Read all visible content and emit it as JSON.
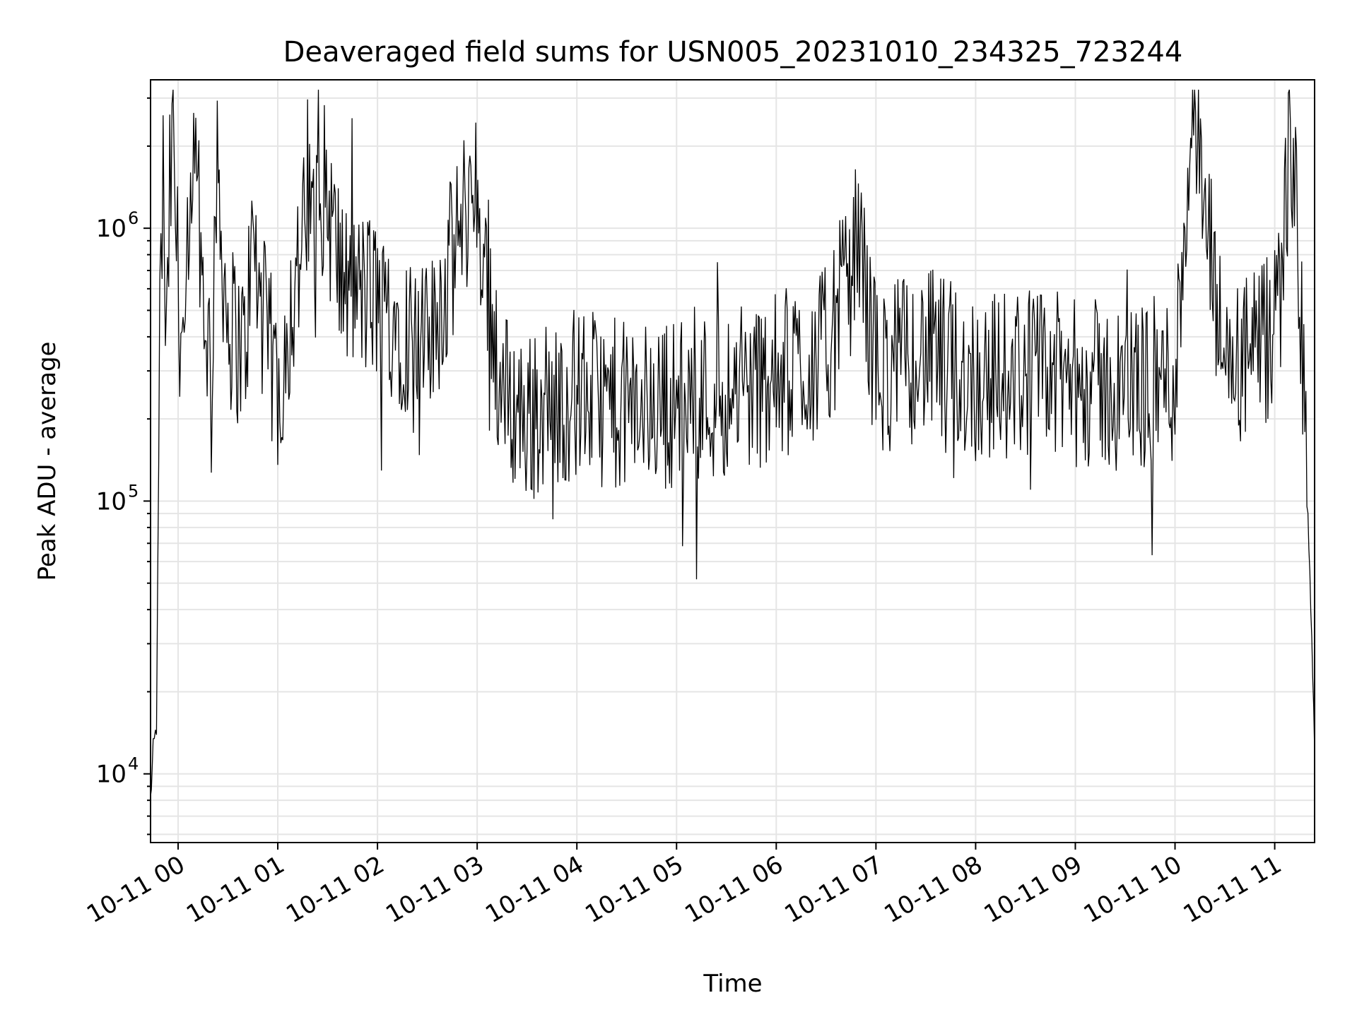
{
  "chart_data": {
    "type": "line",
    "title": "Deaveraged field sums for USN005_20231010_234325_723244",
    "xlabel": "Time",
    "ylabel": "Peak ADU - average",
    "y_scale": "log",
    "ylim": [
      5600,
      3500000
    ],
    "xlim": [
      "2023-10-10 23:43:25",
      "2023-10-11 11:24:00"
    ],
    "grid": true,
    "line_color": "#000000",
    "grid_color": "#e5e5e5",
    "x_ticks": [
      {
        "t": "2023-10-11 00:00",
        "label": "10-11 00"
      },
      {
        "t": "2023-10-11 01:00",
        "label": "10-11 01"
      },
      {
        "t": "2023-10-11 02:00",
        "label": "10-11 02"
      },
      {
        "t": "2023-10-11 03:00",
        "label": "10-11 03"
      },
      {
        "t": "2023-10-11 04:00",
        "label": "10-11 04"
      },
      {
        "t": "2023-10-11 05:00",
        "label": "10-11 05"
      },
      {
        "t": "2023-10-11 06:00",
        "label": "10-11 06"
      },
      {
        "t": "2023-10-11 07:00",
        "label": "10-11 07"
      },
      {
        "t": "2023-10-11 08:00",
        "label": "10-11 08"
      },
      {
        "t": "2023-10-11 09:00",
        "label": "10-11 09"
      },
      {
        "t": "2023-10-11 10:00",
        "label": "10-11 10"
      },
      {
        "t": "2023-10-11 11:00",
        "label": "10-11 11"
      }
    ],
    "y_ticks": [
      {
        "value": 10000,
        "base": "10",
        "exp": "4"
      },
      {
        "value": 100000,
        "base": "10",
        "exp": "5"
      },
      {
        "value": 1000000,
        "base": "10",
        "exp": "6"
      }
    ],
    "series": [
      {
        "values_summary": "dense noisy time series",
        "x": [
          "2023-10-10 23:43:25",
          "2023-10-10 23:45:00",
          "2023-10-10 23:47:00",
          "2023-10-10 23:49:00",
          "2023-10-10 23:51:00",
          "2023-10-10 23:53:00",
          "2023-10-10 23:55:00",
          "2023-10-10 23:57:00",
          "2023-10-10 23:59:00",
          "2023-10-11 00:01:00",
          "2023-10-11 00:03:00",
          "2023-10-11 00:05:00",
          "2023-10-11 00:10:00",
          "2023-10-11 00:15:00",
          "2023-10-11 00:20:00",
          "2023-10-11 00:23:00",
          "2023-10-11 00:30:00",
          "2023-10-11 00:40:00",
          "2023-10-11 00:45:00",
          "2023-10-11 00:50:00",
          "2023-10-11 01:00:00",
          "2023-10-11 01:15:00",
          "2023-10-11 01:28:00",
          "2023-10-11 01:40:00",
          "2023-10-11 02:00:00",
          "2023-10-11 02:30:00",
          "2023-10-11 02:58:00",
          "2023-10-11 03:15:00",
          "2023-10-11 03:30:00",
          "2023-10-11 04:00:00",
          "2023-10-11 04:30:00",
          "2023-10-11 05:00:00",
          "2023-10-11 05:30:00",
          "2023-10-11 06:00:00",
          "2023-10-11 06:30:00",
          "2023-10-11 06:50:00",
          "2023-10-11 07:00:00",
          "2023-10-11 07:30:00",
          "2023-10-11 08:00:00",
          "2023-10-11 08:30:00",
          "2023-10-11 09:00:00",
          "2023-10-11 09:30:00",
          "2023-10-11 10:00:00",
          "2023-10-11 10:10:00",
          "2023-10-11 10:30:00",
          "2023-10-11 10:50:00",
          "2023-10-11 11:00:00",
          "2023-10-11 11:10:00",
          "2023-10-11 11:15:00",
          "2023-10-11 11:20:00",
          "2023-10-11 11:24:00"
        ],
        "y": [
          8000,
          12000,
          15000,
          400000,
          1500000,
          300000,
          1300000,
          2100000,
          900000,
          500000,
          400000,
          350000,
          1700000,
          600000,
          300000,
          1600000,
          450000,
          350000,
          900000,
          500000,
          250000,
          900000,
          1400000,
          600000,
          550000,
          350000,
          1500000,
          250000,
          200000,
          250000,
          220000,
          230000,
          250000,
          280000,
          350000,
          900000,
          300000,
          350000,
          280000,
          300000,
          270000,
          260000,
          280000,
          2600000,
          300000,
          350000,
          400000,
          2300000,
          600000,
          100000,
          12000
        ]
      }
    ]
  }
}
